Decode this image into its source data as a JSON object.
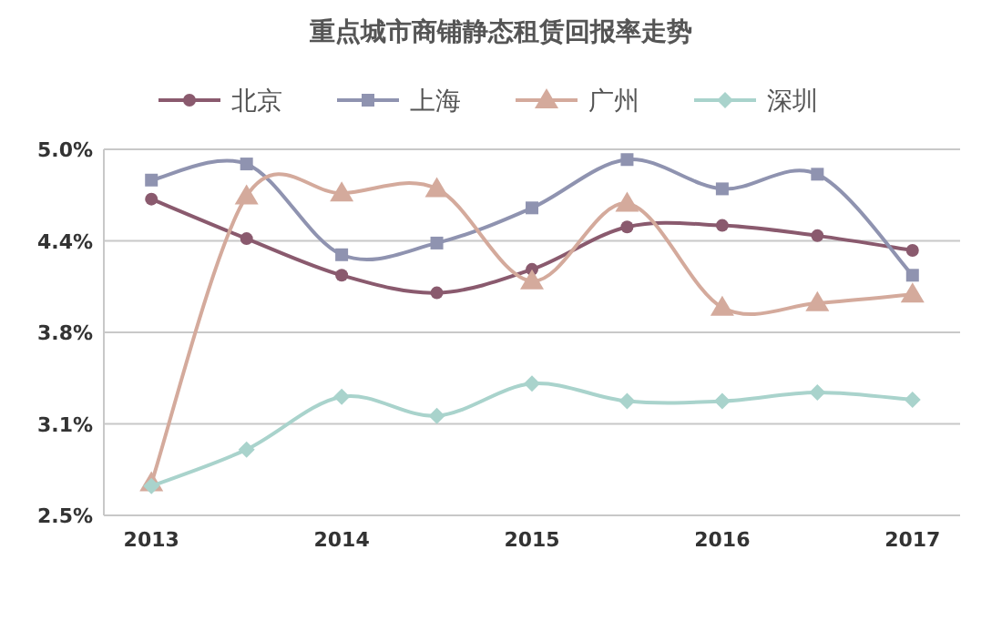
{
  "chart_data": {
    "type": "line",
    "title": "重点城市商铺静态租赁回报率走势",
    "x": [
      2013,
      2013.5,
      2014,
      2014.5,
      2015,
      2015.5,
      2016,
      2016.5,
      2017
    ],
    "xlim": [
      2012.75,
      2017.25
    ],
    "xticks": [
      2013,
      2014,
      2015,
      2016,
      2017
    ],
    "ylim": [
      2.5,
      5.0
    ],
    "yticks": [
      {
        "value": 2.5,
        "label": "2.5%"
      },
      {
        "value": 3.125,
        "label": "3.1%"
      },
      {
        "value": 3.75,
        "label": "3.8%"
      },
      {
        "value": 4.375,
        "label": "4.4%"
      },
      {
        "value": 5.0,
        "label": "5.0%"
      }
    ],
    "grid": "y",
    "legend": "top",
    "series": [
      {
        "name": "北京",
        "color": "#8a5a6e",
        "marker": "circle",
        "values": [
          4.66,
          4.39,
          4.14,
          4.02,
          4.18,
          4.47,
          4.48,
          4.41,
          4.31
        ]
      },
      {
        "name": "上海",
        "color": "#8f93b0",
        "marker": "square",
        "values": [
          4.79,
          4.9,
          4.28,
          4.36,
          4.6,
          4.93,
          4.73,
          4.83,
          4.14
        ]
      },
      {
        "name": "广州",
        "color": "#d4aa9c",
        "marker": "triangle",
        "values": [
          2.72,
          4.68,
          4.7,
          4.73,
          4.1,
          4.63,
          3.92,
          3.95,
          4.01
        ]
      },
      {
        "name": "深圳",
        "color": "#a9d3cc",
        "marker": "diamond",
        "values": [
          2.7,
          2.95,
          3.31,
          3.18,
          3.4,
          3.28,
          3.28,
          3.34,
          3.29
        ]
      }
    ]
  }
}
